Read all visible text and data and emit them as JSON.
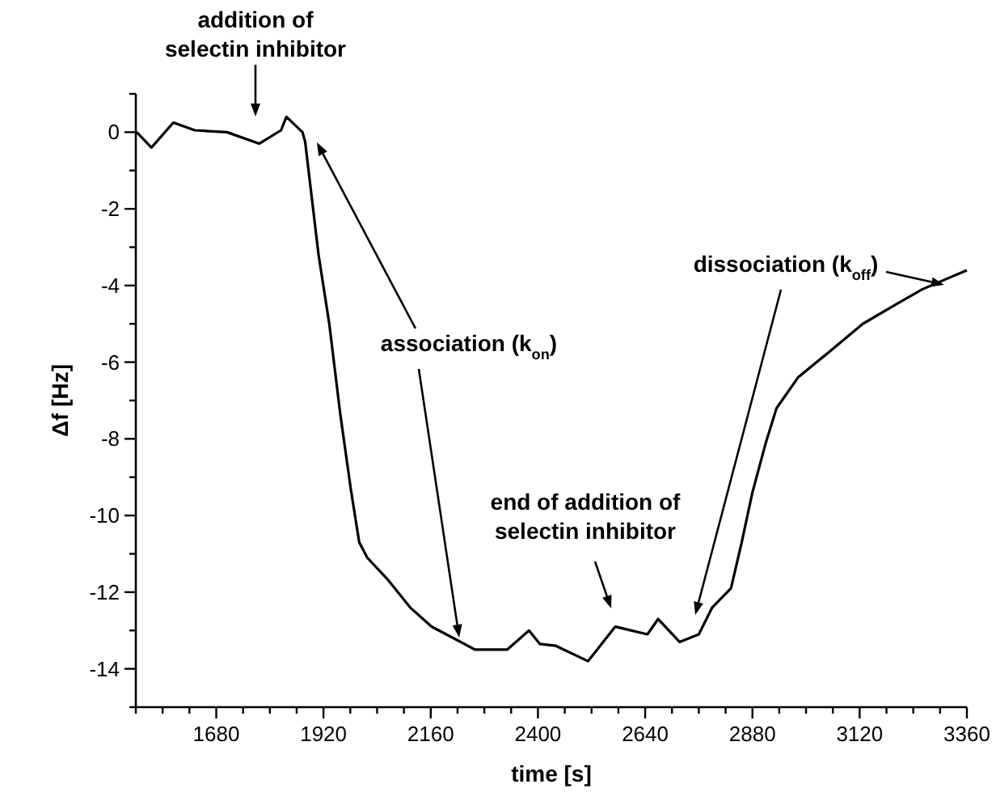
{
  "chart_data": {
    "type": "line",
    "xlabel": "time [s]",
    "ylabel": "Δf [Hz]",
    "xlim": [
      1500,
      3360
    ],
    "ylim": [
      -15,
      1
    ],
    "xticks": [
      {
        "value": 1500,
        "label": null
      },
      {
        "value": 1560,
        "label": null
      },
      {
        "value": 1620,
        "label": null
      },
      1680,
      {
        "value": 1740,
        "label": null
      },
      {
        "value": 1800,
        "label": null
      },
      {
        "value": 1860,
        "label": null
      },
      1920,
      {
        "value": 1980,
        "label": null
      },
      {
        "value": 2040,
        "label": null
      },
      {
        "value": 2100,
        "label": null
      },
      2160,
      {
        "value": 2220,
        "label": null
      },
      {
        "value": 2280,
        "label": null
      },
      {
        "value": 2340,
        "label": null
      },
      2400,
      {
        "value": 2460,
        "label": null
      },
      {
        "value": 2520,
        "label": null
      },
      {
        "value": 2580,
        "label": null
      },
      2640,
      {
        "value": 2700,
        "label": null
      },
      {
        "value": 2760,
        "label": null
      },
      {
        "value": 2820,
        "label": null
      },
      2880,
      {
        "value": 2940,
        "label": null
      },
      {
        "value": 3000,
        "label": null
      },
      {
        "value": 3060,
        "label": null
      },
      3120,
      {
        "value": 3180,
        "label": null
      },
      {
        "value": 3240,
        "label": null
      },
      {
        "value": 3300,
        "label": null
      },
      3360
    ],
    "yticks": [
      {
        "value": -15,
        "label": null
      },
      -14,
      {
        "value": -13,
        "label": null
      },
      -12,
      {
        "value": -11,
        "label": null
      },
      -10,
      {
        "value": -9,
        "label": null
      },
      -8,
      {
        "value": -7,
        "label": null
      },
      -6,
      {
        "value": -5,
        "label": null
      },
      -4,
      {
        "value": -3,
        "label": null
      },
      -2,
      {
        "value": -1,
        "label": null
      },
      0,
      {
        "value": 1,
        "label": null
      }
    ],
    "grid": false,
    "marker": "none",
    "line_style": "solid",
    "series": [
      {
        "color": "#000000",
        "x": [
          1502,
          1535,
          1584,
          1632,
          1704,
          1776,
          1825,
          1837,
          1873,
          1879,
          1909,
          1933,
          1957,
          1981,
          2000,
          2018,
          2066,
          2114,
          2162,
          2211,
          2259,
          2331,
          2380,
          2404,
          2440,
          2512,
          2573,
          2645,
          2669,
          2717,
          2760,
          2790,
          2832,
          2856,
          2880,
          2910,
          2934,
          2982,
          3055,
          3127,
          3200,
          3260,
          3320,
          3360
        ],
        "values": [
          0,
          -0.4,
          0.25,
          0.05,
          0,
          -0.3,
          0.05,
          0.4,
          0,
          -0.25,
          -3.2,
          -5,
          -7.3,
          -9.3,
          -10.7,
          -11.1,
          -11.7,
          -12.4,
          -12.9,
          -13.2,
          -13.5,
          -13.5,
          -13,
          -13.35,
          -13.4,
          -13.8,
          -12.9,
          -13.1,
          -12.7,
          -13.3,
          -13.1,
          -12.4,
          -11.9,
          -10.7,
          -9.4,
          -8.1,
          -7.2,
          -6.4,
          -5.7,
          -5,
          -4.5,
          -4.1,
          -3.8,
          -3.6
        ]
      }
    ],
    "annotations": [
      "addition of\nselectin inhibitor",
      "association (k$_{on}$)",
      "end of addition of\nselectin inhibitor",
      "dissociation (k$_{off}$)"
    ]
  }
}
